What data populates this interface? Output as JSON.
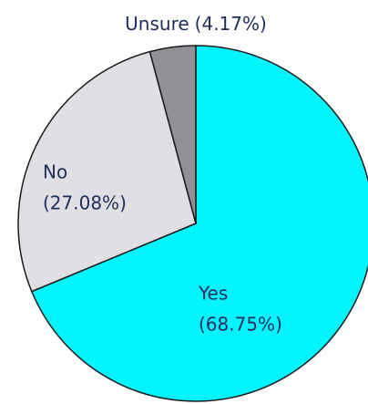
{
  "chart_data": {
    "type": "pie",
    "categories": [
      "Yes",
      "No",
      "Unsure"
    ],
    "values": [
      68.75,
      27.08,
      4.17
    ],
    "value_labels": [
      "(68.75%)",
      "(27.08%)",
      "(4.17%)"
    ],
    "colors": [
      "#00f5ff",
      "#e0e0e4",
      "#8f9196"
    ]
  }
}
